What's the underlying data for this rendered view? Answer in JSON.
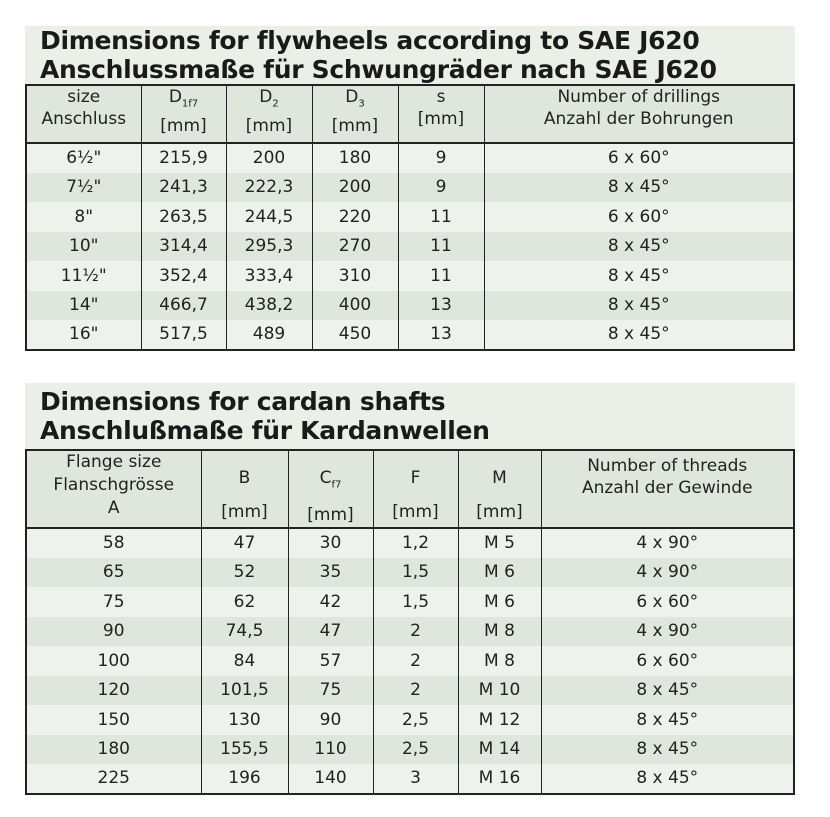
{
  "flywheels": {
    "title_en": "Dimensions for flywheels according to SAE J620",
    "title_de": "Anschlussmaße für Schwungräder nach SAE J620",
    "headers": [
      {
        "l1": "size",
        "l2": "Anschluss"
      },
      {
        "main": "D",
        "sub": "1f7",
        "unit": "[mm]"
      },
      {
        "main": "D",
        "sub": "2",
        "unit": "[mm]"
      },
      {
        "main": "D",
        "sub": "3",
        "unit": "[mm]"
      },
      {
        "main": "s",
        "unit": "[mm]"
      },
      {
        "l1": "Number of drillings",
        "l2": "Anzahl der Bohrungen"
      }
    ],
    "rows": [
      [
        "6½\"",
        "215,9",
        "200",
        "180",
        "9",
        "6 x 60°"
      ],
      [
        "7½\"",
        "241,3",
        "222,3",
        "200",
        "9",
        "8 x 45°"
      ],
      [
        "8\"",
        "263,5",
        "244,5",
        "220",
        "11",
        "6 x 60°"
      ],
      [
        "10\"",
        "314,4",
        "295,3",
        "270",
        "11",
        "8 x 45°"
      ],
      [
        "11½\"",
        "352,4",
        "333,4",
        "310",
        "11",
        "8 x 45°"
      ],
      [
        "14\"",
        "466,7",
        "438,2",
        "400",
        "13",
        "8 x 45°"
      ],
      [
        "16\"",
        "517,5",
        "489",
        "450",
        "13",
        "8 x 45°"
      ]
    ]
  },
  "cardan": {
    "title_en": "Dimensions for cardan shafts",
    "title_de": "Anschlußmaße für Kardanwellen",
    "headers": [
      {
        "l1": "Flange size",
        "l2": "Flanschgrösse",
        "l3": "A"
      },
      {
        "main": "B",
        "unit": "[mm]"
      },
      {
        "main": "C",
        "sub": "f7",
        "unit": "[mm]"
      },
      {
        "main": "F",
        "unit": "[mm]"
      },
      {
        "main": "M",
        "unit": "[mm]"
      },
      {
        "l1": "Number of threads",
        "l2": "Anzahl der Gewinde"
      }
    ],
    "rows": [
      [
        "58",
        "47",
        "30",
        "1,2",
        "M 5",
        "4 x 90°"
      ],
      [
        "65",
        "52",
        "35",
        "1,5",
        "M 6",
        "4 x 90°"
      ],
      [
        "75",
        "62",
        "42",
        "1,5",
        "M 6",
        "6 x 60°"
      ],
      [
        "90",
        "74,5",
        "47",
        "2",
        "M 8",
        "4 x 90°"
      ],
      [
        "100",
        "84",
        "57",
        "2",
        "M 8",
        "6 x 60°"
      ],
      [
        "120",
        "101,5",
        "75",
        "2",
        "M 10",
        "8 x 45°"
      ],
      [
        "150",
        "130",
        "90",
        "2,5",
        "M 12",
        "8 x 45°"
      ],
      [
        "180",
        "155,5",
        "110",
        "2,5",
        "M 14",
        "8 x 45°"
      ],
      [
        "225",
        "196",
        "140",
        "3",
        "M 16",
        "8 x 45°"
      ]
    ]
  },
  "colors": {
    "header_bg": "#dfe6db",
    "row_light": "#eef2ec",
    "row_dark": "#dfe6db",
    "title_bg": "#eaefe8"
  }
}
